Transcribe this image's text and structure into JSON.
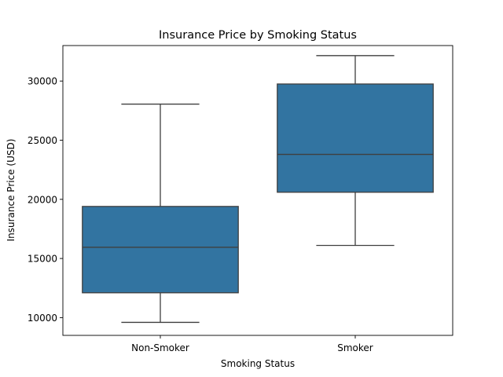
{
  "chart_data": {
    "type": "boxplot",
    "title": "Insurance Price by Smoking Status",
    "xlabel": "Smoking Status",
    "ylabel": "Insurance Price (USD)",
    "ylim": [
      8500,
      33000
    ],
    "yticks": [
      10000,
      15000,
      20000,
      25000,
      30000
    ],
    "categories": [
      "Non-Smoker",
      "Smoker"
    ],
    "boxes": [
      {
        "category": "Non-Smoker",
        "whisker_low": 9600,
        "q1": 12100,
        "median": 15950,
        "q3": 19400,
        "whisker_high": 28050
      },
      {
        "category": "Smoker",
        "whisker_low": 16100,
        "q1": 20600,
        "median": 23800,
        "q3": 29750,
        "whisker_high": 32150
      }
    ],
    "box_color": "#3274a1",
    "line_color": "#3f3f3f",
    "grid": false,
    "legend": "none"
  }
}
